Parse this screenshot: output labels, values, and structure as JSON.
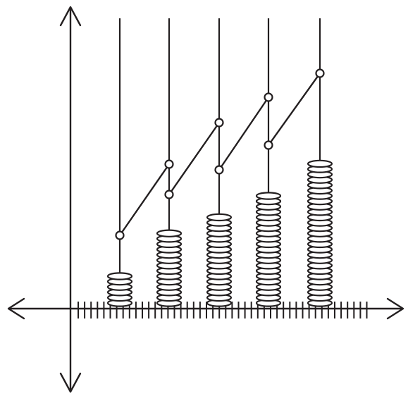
{
  "diagram": {
    "kind": "coin-stack-growth",
    "line_color": "#231f20",
    "background": "#ffffff",
    "axes": {
      "horizontal_arrows": "both-ends",
      "vertical_arrows": "both-ends",
      "tick_marks": true
    },
    "stacks": [
      {
        "coins": 6
      },
      {
        "coins": 14
      },
      {
        "coins": 17
      },
      {
        "coins": 21
      },
      {
        "coins": 27
      }
    ],
    "connector_nodes": [
      {
        "stack": 1,
        "node": "lower"
      },
      {
        "stack": 2,
        "node": "upper"
      },
      {
        "stack": 2,
        "node": "lower"
      },
      {
        "stack": 3,
        "node": "upper"
      },
      {
        "stack": 3,
        "node": "lower"
      },
      {
        "stack": 4,
        "node": "upper"
      },
      {
        "stack": 4,
        "node": "lower"
      },
      {
        "stack": 5,
        "node": "upper"
      }
    ]
  }
}
